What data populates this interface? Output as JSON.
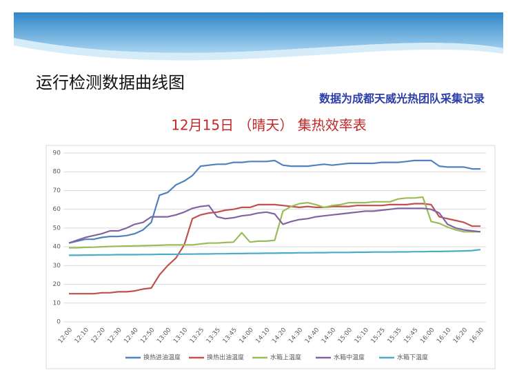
{
  "slide": {
    "title": "运行检测数据曲线图",
    "note": "数据为成都天威光热团队采集记录"
  },
  "chart_data": {
    "type": "line",
    "title": "12月15日 （晴天） 集热效率表",
    "categories": [
      "12:00",
      null,
      "12:10",
      null,
      "12:20",
      null,
      "12:30",
      null,
      "12:40",
      null,
      "12:50",
      null,
      "13:00",
      null,
      "13:10",
      null,
      "13:25",
      null,
      "13:35",
      null,
      "13:45",
      null,
      "14:00",
      null,
      "14:10",
      null,
      "14:20",
      null,
      "14:30",
      null,
      "14:40",
      null,
      "14:50",
      null,
      "15:00",
      null,
      "15:10",
      null,
      "15:25",
      null,
      "15:35",
      null,
      "15:45",
      null,
      "16:00",
      null,
      "16:10",
      null,
      "16:20",
      null,
      "16:30"
    ],
    "series": [
      {
        "name": "换热进油温度",
        "color": "#4f81bd",
        "values": [
          42,
          43,
          44,
          44,
          45,
          45.5,
          45.5,
          46,
          47,
          49,
          53,
          67.5,
          69,
          73,
          75,
          78,
          83,
          83.5,
          84,
          84,
          85,
          85,
          85.5,
          85.5,
          85.5,
          86,
          83.5,
          83,
          83,
          83,
          83.5,
          84,
          83.5,
          84,
          84.5,
          84.5,
          84.5,
          84.5,
          85,
          85,
          85,
          85.5,
          86,
          86,
          86,
          83,
          82.5,
          82.5,
          82.5,
          81.5,
          81.5
        ]
      },
      {
        "name": "换热出油温度",
        "color": "#c0504d",
        "values": [
          15,
          15,
          15,
          15,
          15.5,
          15.5,
          16,
          16,
          16.5,
          17.5,
          18,
          25,
          30,
          34,
          41,
          55,
          57,
          58,
          58.5,
          59.5,
          60,
          61,
          61,
          62.5,
          62.5,
          62.5,
          62,
          61.5,
          61,
          61.5,
          61,
          61,
          61.5,
          61.5,
          61.5,
          62,
          62,
          62,
          62,
          62.5,
          62.5,
          62.5,
          63,
          63,
          62.5,
          56,
          55,
          54,
          53,
          51,
          51
        ]
      },
      {
        "name": "水箱上温度",
        "color": "#9bbb59",
        "values": [
          39.5,
          39.5,
          39.7,
          39.8,
          40,
          40.2,
          40.3,
          40.4,
          40.5,
          40.6,
          40.7,
          40.8,
          41,
          41,
          41,
          41,
          41.5,
          42,
          42,
          42.3,
          42.5,
          47.5,
          42.5,
          43,
          43,
          43.5,
          59,
          61.5,
          63,
          63.5,
          62.5,
          61,
          62,
          62.5,
          63.5,
          63.5,
          63.5,
          64,
          64,
          64,
          65.5,
          66,
          66,
          66.5,
          53.5,
          52.5,
          50.5,
          49,
          48,
          48,
          48
        ]
      },
      {
        "name": "水箱中温度",
        "color": "#8064a2",
        "values": [
          42,
          43.5,
          45,
          46,
          47,
          48.5,
          48.5,
          50,
          52,
          53,
          56,
          56,
          56,
          57,
          58.5,
          60.5,
          61.5,
          62,
          56,
          55,
          55.5,
          56.5,
          57,
          58,
          58.5,
          57.5,
          52,
          53.5,
          54.5,
          55,
          56,
          56.5,
          57,
          57.5,
          58,
          58.5,
          59,
          59,
          59.5,
          60,
          60.5,
          60.5,
          60.5,
          60.5,
          60,
          58,
          52,
          50,
          49,
          48.5,
          48
        ]
      },
      {
        "name": "水箱下温度",
        "color": "#4bacc6",
        "values": [
          35.5,
          35.5,
          35.6,
          35.6,
          35.7,
          35.7,
          35.8,
          35.8,
          35.8,
          35.9,
          35.9,
          36,
          36,
          36,
          36.1,
          36.1,
          36.2,
          36.2,
          36.3,
          36.3,
          36.4,
          36.4,
          36.5,
          36.5,
          36.6,
          36.6,
          36.7,
          36.7,
          36.8,
          36.8,
          36.9,
          36.9,
          37,
          37,
          37,
          37.1,
          37.1,
          37.2,
          37.2,
          37.2,
          37.3,
          37.3,
          37.4,
          37.4,
          37.5,
          37.5,
          37.6,
          37.7,
          37.8,
          38,
          38.5
        ]
      }
    ],
    "ylim": [
      0,
      90
    ],
    "yticks": [
      0,
      10,
      20,
      30,
      40,
      50,
      60,
      70,
      80,
      90
    ],
    "grid": true,
    "legend": "bottom"
  }
}
